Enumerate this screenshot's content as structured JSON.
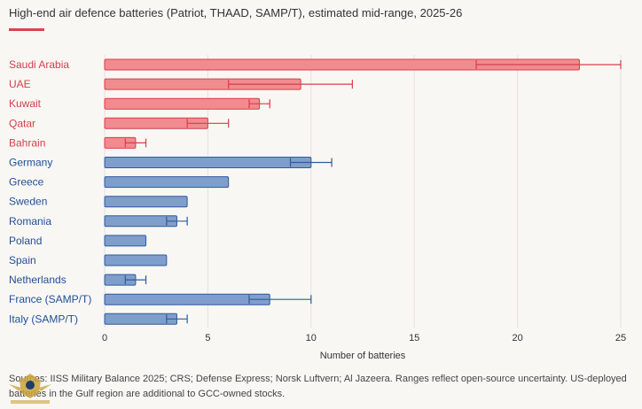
{
  "header": {
    "subtitle": "High-end air defence batteries (Patriot, THAAD, SAMP/T), estimated mid-range, 2025-26"
  },
  "colors": {
    "gulf_fill": "#f08c8f",
    "gulf_stroke": "#d63f49",
    "gulf_label": "#d63f49",
    "europe_fill": "#7f9ecb",
    "europe_stroke": "#2f5b9c",
    "europe_label": "#1f4f96",
    "accent": "#d9444e"
  },
  "chart_data": {
    "type": "bar",
    "orientation": "horizontal",
    "xlabel": "Number of batteries",
    "xlim": [
      0,
      25
    ],
    "xticks": [
      0,
      5,
      10,
      15,
      20,
      25
    ],
    "grid": true,
    "categories": [
      "Saudi Arabia",
      "UAE",
      "Kuwait",
      "Qatar",
      "Bahrain",
      "Germany",
      "Greece",
      "Sweden",
      "Romania",
      "Poland",
      "Spain",
      "Netherlands",
      "France (SAMP/T)",
      "Italy (SAMP/T)"
    ],
    "values": [
      23,
      9.5,
      7.5,
      5,
      1.5,
      10,
      6,
      4,
      3.5,
      2,
      3,
      1.5,
      8,
      3.5
    ],
    "low": [
      18,
      6,
      7,
      4,
      1,
      9,
      null,
      null,
      3,
      null,
      null,
      1,
      7,
      3
    ],
    "high": [
      25,
      12,
      8,
      6,
      2,
      11,
      null,
      null,
      4,
      null,
      null,
      2,
      10,
      4
    ],
    "group": [
      "gulf",
      "gulf",
      "gulf",
      "gulf",
      "gulf",
      "europe",
      "europe",
      "europe",
      "europe",
      "europe",
      "europe",
      "europe",
      "europe",
      "europe"
    ]
  },
  "footer": {
    "source": "Sources: IISS Military Balance 2025; CRS; Defense Express; Norsk Luftvern; Al Jazeera. Ranges reflect open-source uncertainty. US-deployed batteries in the Gulf region are additional to GCC-owned stocks.",
    "logo_text": "ARAB DEFENSE FORUM"
  }
}
